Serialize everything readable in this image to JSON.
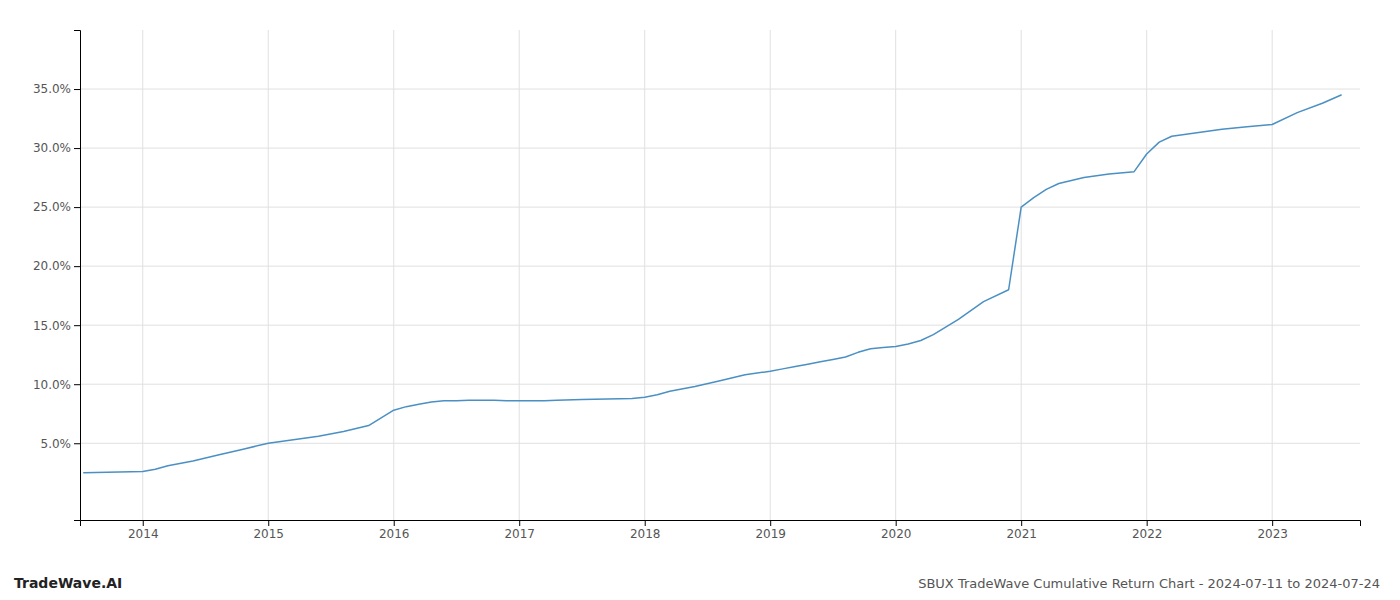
{
  "chart_data": {
    "type": "line",
    "title": "SBUX TradeWave Cumulative Return Chart - 2024-07-11 to 2024-07-24",
    "annotations": [
      "TradeWave.AI"
    ],
    "color": "#4a90c4",
    "grid": true,
    "x": [
      2013.53,
      2014.0,
      2014.1,
      2014.2,
      2014.4,
      2014.6,
      2014.8,
      2015.0,
      2015.2,
      2015.4,
      2015.6,
      2015.8,
      2016.0,
      2016.1,
      2016.2,
      2016.3,
      2016.4,
      2016.5,
      2016.6,
      2016.7,
      2016.8,
      2016.9,
      2017.0,
      2017.1,
      2017.2,
      2017.3,
      2017.5,
      2017.7,
      2017.9,
      2018.0,
      2018.1,
      2018.2,
      2018.4,
      2018.6,
      2018.8,
      2019.0,
      2019.1,
      2019.2,
      2019.3,
      2019.4,
      2019.5,
      2019.6,
      2019.7,
      2019.8,
      2019.9,
      2020.0,
      2020.1,
      2020.2,
      2020.3,
      2020.5,
      2020.7,
      2020.9,
      2021.0,
      2021.1,
      2021.2,
      2021.3,
      2021.5,
      2021.7,
      2021.9,
      2022.0,
      2022.1,
      2022.2,
      2022.4,
      2022.6,
      2022.8,
      2023.0,
      2023.2,
      2023.4,
      2023.55
    ],
    "values": [
      2.5,
      2.6,
      2.8,
      3.1,
      3.5,
      4.0,
      4.5,
      5.0,
      5.3,
      5.6,
      6.0,
      6.5,
      7.8,
      8.1,
      8.3,
      8.5,
      8.6,
      8.6,
      8.65,
      8.65,
      8.65,
      8.6,
      8.6,
      8.6,
      8.6,
      8.65,
      8.7,
      8.75,
      8.8,
      8.9,
      9.1,
      9.4,
      9.8,
      10.3,
      10.8,
      11.1,
      11.3,
      11.5,
      11.7,
      11.9,
      12.1,
      12.3,
      12.7,
      13.0,
      13.1,
      13.2,
      13.4,
      13.7,
      14.2,
      15.5,
      17.0,
      18.0,
      25.0,
      25.8,
      26.5,
      27.0,
      27.5,
      27.8,
      28.0,
      29.5,
      30.5,
      31.0,
      31.3,
      31.6,
      31.8,
      32.0,
      33.0,
      33.8,
      34.5
    ],
    "xlim": [
      2013.5,
      2023.7
    ],
    "xticks": [
      2014,
      2015,
      2016,
      2017,
      2018,
      2019,
      2020,
      2021,
      2022,
      2023
    ],
    "ylim": [
      -1.5,
      40
    ],
    "yticks": [
      {
        "value": 5.0,
        "label": "5.0%"
      },
      {
        "value": 10.0,
        "label": "10.0%"
      },
      {
        "value": 15.0,
        "label": "15.0%"
      },
      {
        "value": 20.0,
        "label": "20.0%"
      },
      {
        "value": 25.0,
        "label": "25.0%"
      },
      {
        "value": 30.0,
        "label": "30.0%"
      },
      {
        "value": 35.0,
        "label": "35.0%"
      }
    ]
  }
}
